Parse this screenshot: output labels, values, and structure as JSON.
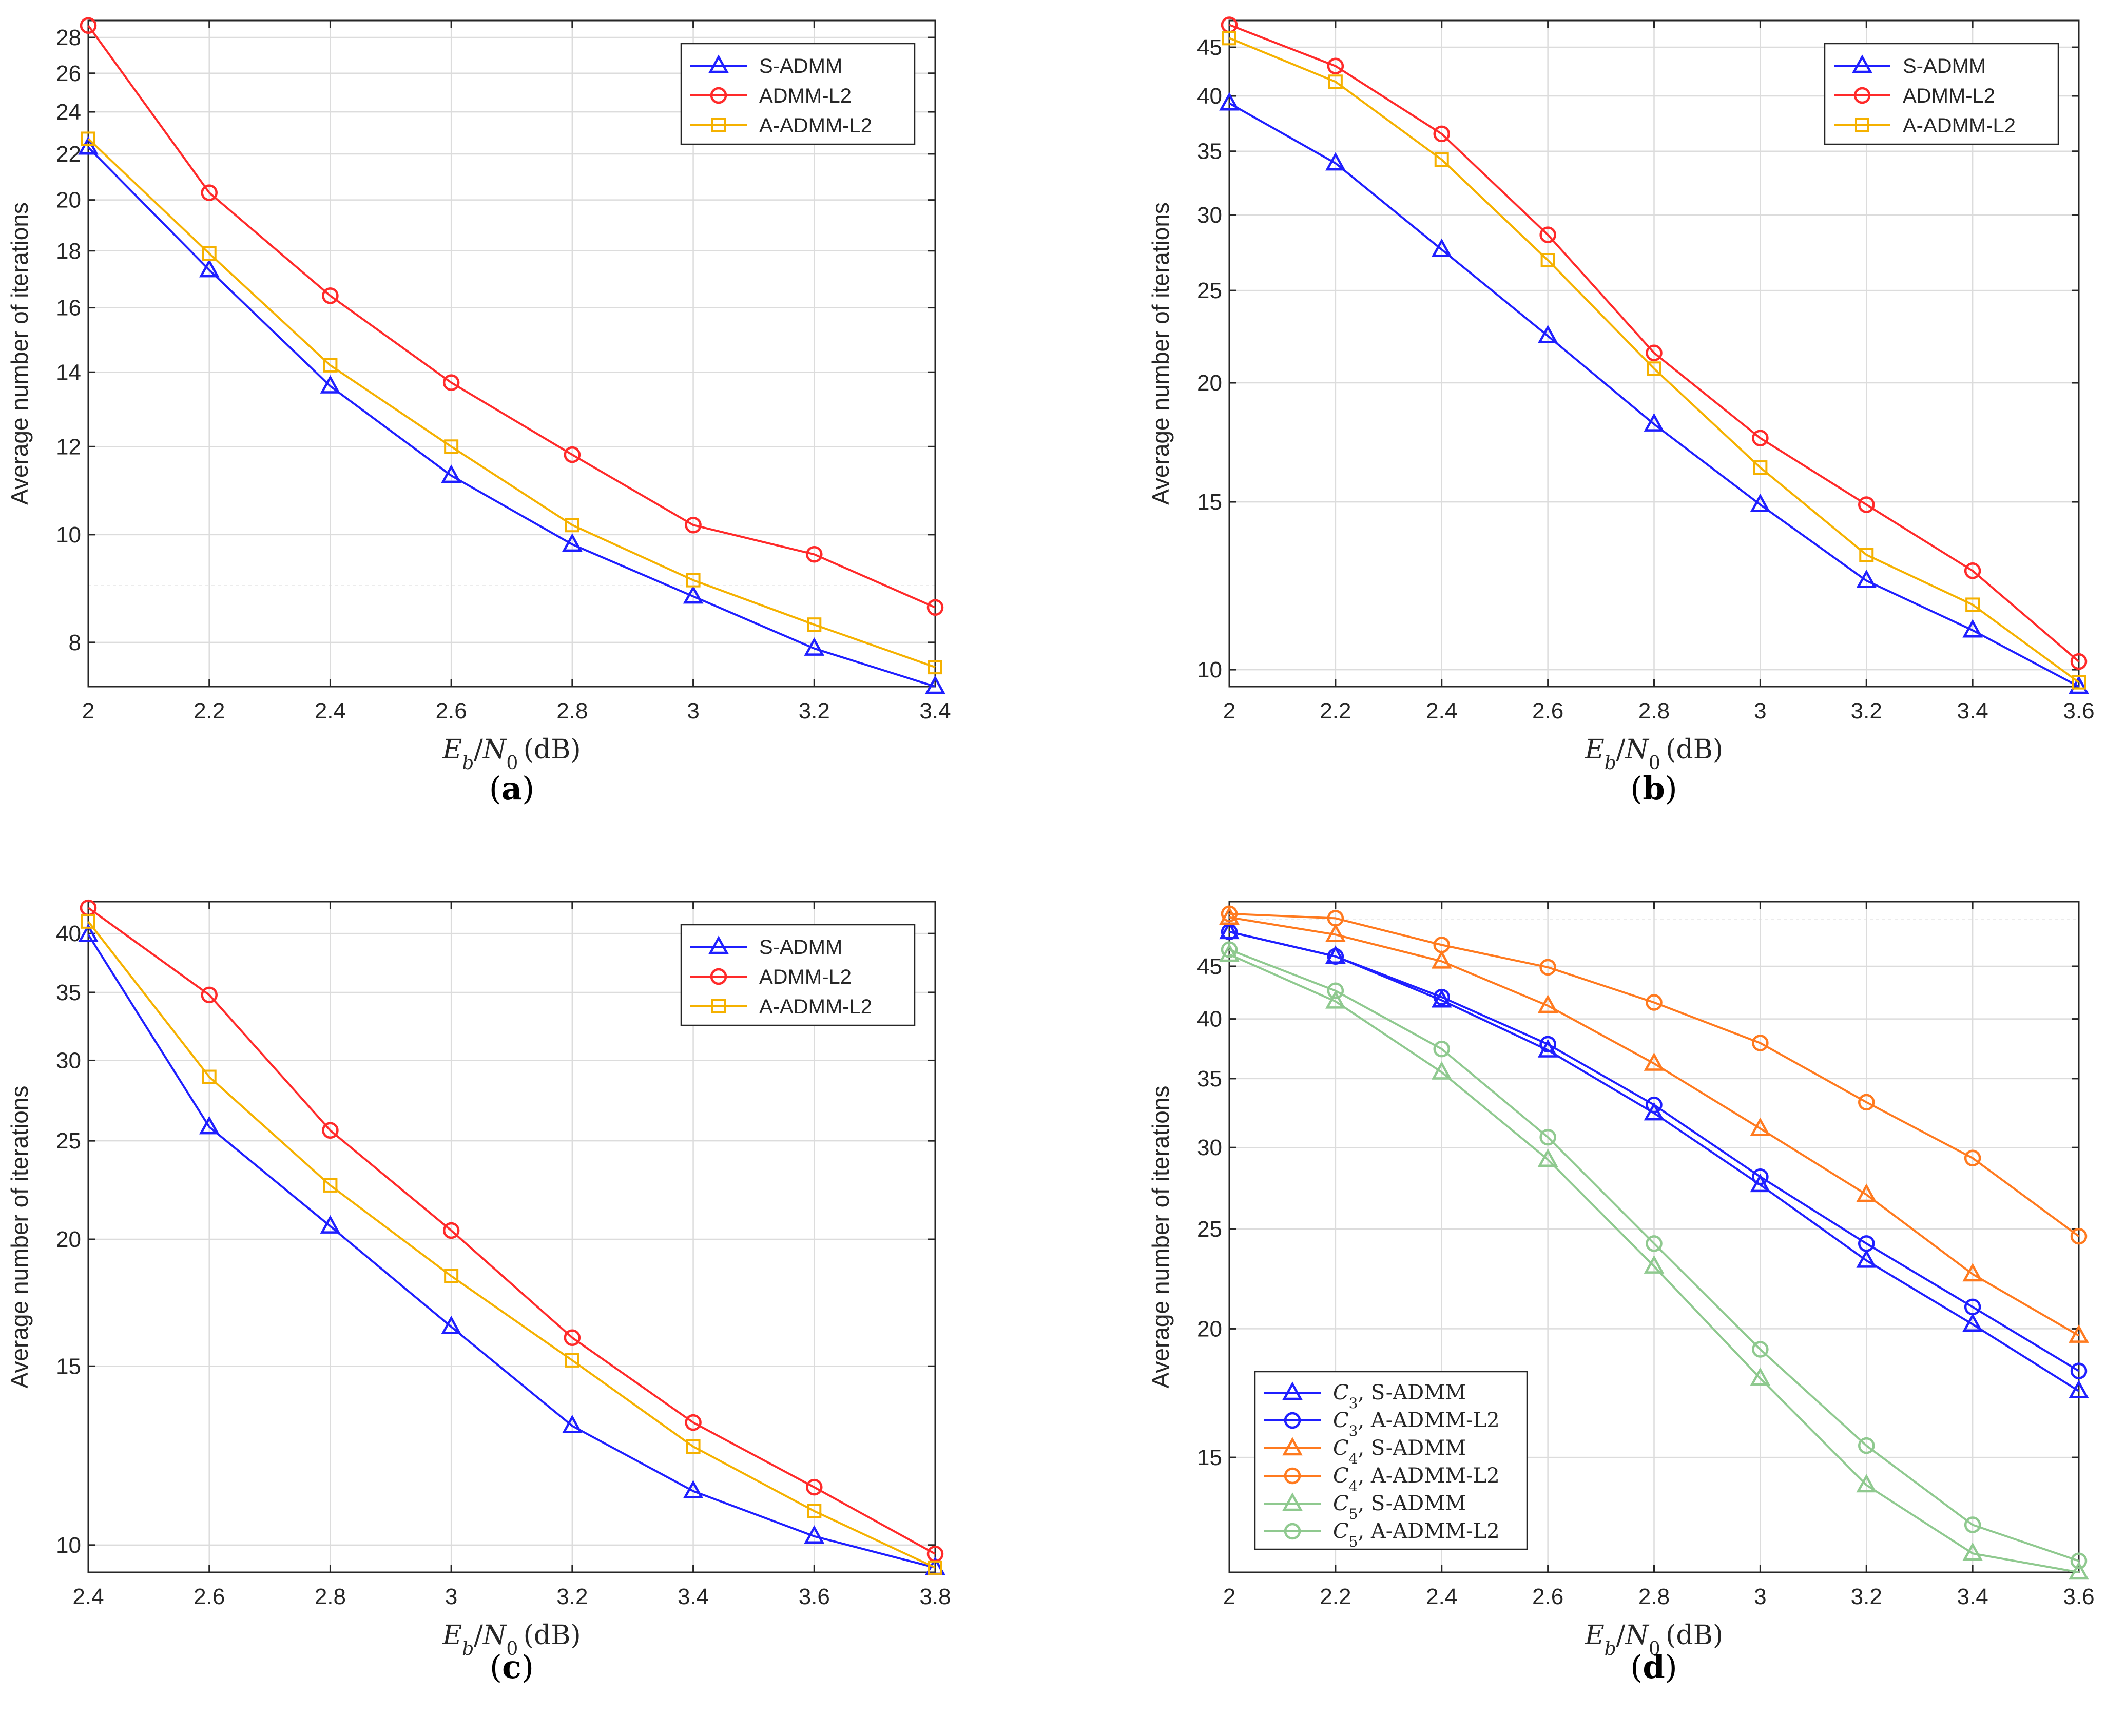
{
  "figure": {
    "captions": [
      "(a)",
      "(b)",
      "(c)",
      "(d)"
    ]
  },
  "colors": {
    "s_admm": "#1f1fff",
    "admm_l2": "#ff2a2a",
    "a_admm_l2": "#f5b100",
    "c3": "#1f1fff",
    "c4": "#ff7a1f",
    "c5": "#8fc98f",
    "grid_major": "#dcdcdc",
    "grid_minor": "#ececec",
    "axis": "#262626"
  },
  "chart_data": [
    {
      "panel": "a",
      "caption_letter": "a",
      "type": "line",
      "yscale": "log",
      "xlabel": "E_b/N_0 (dB)",
      "ylabel": "Average number of iterations",
      "xlim": [
        2,
        3.4
      ],
      "ylim": [
        7.3,
        29
      ],
      "xticks": [
        2,
        2.2,
        2.4,
        2.6,
        2.8,
        3,
        3.2,
        3.4
      ],
      "xtick_labels": [
        "2",
        "2.2",
        "2.4",
        "2.6",
        "2.8",
        "3",
        "3.2",
        "3.4"
      ],
      "yticks": [
        8,
        10,
        12,
        14,
        16,
        18,
        20,
        22,
        24,
        26,
        28
      ],
      "ytick_labels": [
        "8",
        "10",
        "12",
        "14",
        "16",
        "18",
        "20",
        "22",
        "24",
        "26",
        "28"
      ],
      "legend_position": "top-right",
      "x": [
        2,
        2.2,
        2.4,
        2.6,
        2.8,
        3,
        3.2,
        3.4
      ],
      "series": [
        {
          "name": "S-ADMM",
          "legend_label": "S-ADMM",
          "color": "#1f1fff",
          "marker": "triangle",
          "values": [
            22.3,
            17.3,
            13.6,
            11.3,
            9.8,
            8.8,
            7.9,
            7.3
          ]
        },
        {
          "name": "ADMM-L2",
          "legend_label": "ADMM-L2",
          "color": "#ff2a2a",
          "marker": "circle",
          "values": [
            28.7,
            20.3,
            16.4,
            13.7,
            11.8,
            10.2,
            9.6,
            8.6
          ]
        },
        {
          "name": "A-ADMM-L2",
          "legend_label": "A-ADMM-L2",
          "color": "#f5b100",
          "marker": "square",
          "values": [
            22.7,
            17.9,
            14.2,
            12.0,
            10.2,
            9.1,
            8.3,
            7.6
          ]
        }
      ]
    },
    {
      "panel": "b",
      "caption_letter": "b",
      "type": "line",
      "yscale": "log",
      "xlabel": "E_b/N_0 (dB)",
      "ylabel": "Average number of iterations",
      "xlim": [
        2,
        3.6
      ],
      "ylim": [
        9.6,
        48
      ],
      "xticks": [
        2,
        2.2,
        2.4,
        2.6,
        2.8,
        3,
        3.2,
        3.4,
        3.6
      ],
      "xtick_labels": [
        "2",
        "2.2",
        "2.4",
        "2.6",
        "2.8",
        "3",
        "3.2",
        "3.4",
        "3.6"
      ],
      "yticks": [
        10,
        15,
        20,
        25,
        30,
        35,
        40,
        45
      ],
      "ytick_labels": [
        "10",
        "15",
        "20",
        "25",
        "30",
        "35",
        "40",
        "45"
      ],
      "legend_position": "top-right",
      "x": [
        2,
        2.2,
        2.4,
        2.6,
        2.8,
        3,
        3.2,
        3.4,
        3.6
      ],
      "series": [
        {
          "name": "S-ADMM",
          "legend_label": "S-ADMM",
          "color": "#1f1fff",
          "marker": "triangle",
          "values": [
            39.3,
            34.0,
            27.6,
            22.4,
            18.1,
            14.9,
            12.4,
            11.0,
            9.6
          ]
        },
        {
          "name": "ADMM-L2",
          "legend_label": "ADMM-L2",
          "color": "#ff2a2a",
          "marker": "circle",
          "values": [
            47.5,
            43.0,
            36.5,
            28.6,
            21.5,
            17.5,
            14.9,
            12.7,
            10.2
          ]
        },
        {
          "name": "A-ADMM-L2",
          "legend_label": "A-ADMM-L2",
          "color": "#f5b100",
          "marker": "square",
          "values": [
            46.0,
            41.4,
            34.3,
            26.9,
            20.7,
            16.3,
            13.2,
            11.7,
            9.7
          ]
        }
      ]
    },
    {
      "panel": "c",
      "caption_letter": "c",
      "type": "line",
      "yscale": "log",
      "xlabel": "E_b/N_0 (dB)",
      "ylabel": "Average number of iterations",
      "xlim": [
        2.4,
        3.8
      ],
      "ylim": [
        9.4,
        43
      ],
      "xticks": [
        2.4,
        2.6,
        2.8,
        3,
        3.2,
        3.4,
        3.6,
        3.8
      ],
      "xtick_labels": [
        "2.4",
        "2.6",
        "2.8",
        "3",
        "3.2",
        "3.4",
        "3.6",
        "3.8"
      ],
      "yticks": [
        10,
        15,
        20,
        25,
        30,
        35,
        40
      ],
      "ytick_labels": [
        "10",
        "15",
        "20",
        "25",
        "30",
        "35",
        "40"
      ],
      "legend_position": "top-right",
      "x": [
        2.4,
        2.6,
        2.8,
        3,
        3.2,
        3.4,
        3.6,
        3.8
      ],
      "series": [
        {
          "name": "S-ADMM",
          "legend_label": "S-ADMM",
          "color": "#1f1fff",
          "marker": "triangle",
          "values": [
            39.9,
            25.8,
            20.6,
            16.4,
            13.1,
            11.3,
            10.2,
            9.5
          ]
        },
        {
          "name": "ADMM-L2",
          "legend_label": "ADMM-L2",
          "color": "#ff2a2a",
          "marker": "circle",
          "values": [
            42.4,
            34.8,
            25.6,
            20.4,
            16.0,
            13.2,
            11.4,
            9.8
          ]
        },
        {
          "name": "A-ADMM-L2",
          "legend_label": "A-ADMM-L2",
          "color": "#f5b100",
          "marker": "square",
          "values": [
            41.1,
            28.9,
            22.6,
            18.4,
            15.2,
            12.5,
            10.8,
            9.5
          ]
        }
      ]
    },
    {
      "panel": "d",
      "caption_letter": "d",
      "type": "line",
      "yscale": "log",
      "xlabel": "E_b/N_0 (dB)",
      "ylabel": "Average number of iterations",
      "xlim": [
        2,
        3.6
      ],
      "ylim": [
        11.6,
        52
      ],
      "xticks": [
        2,
        2.2,
        2.4,
        2.6,
        2.8,
        3,
        3.2,
        3.4,
        3.6
      ],
      "xtick_labels": [
        "2",
        "2.2",
        "2.4",
        "2.6",
        "2.8",
        "3",
        "3.2",
        "3.4",
        "3.6"
      ],
      "yticks": [
        15,
        20,
        25,
        30,
        35,
        40,
        45
      ],
      "ytick_labels": [
        "15",
        "20",
        "25",
        "30",
        "35",
        "40",
        "45"
      ],
      "legend_position": "bottom-left",
      "x": [
        2,
        2.2,
        2.4,
        2.6,
        2.8,
        3,
        3.2,
        3.4,
        3.6
      ],
      "series": [
        {
          "name": "C3, S-ADMM",
          "legend_code": "C",
          "legend_sub": "3",
          "legend_label": ", S-ADMM",
          "color": "#1f1fff",
          "marker": "triangle",
          "values": [
            48.6,
            46.0,
            41.7,
            37.3,
            32.4,
            27.6,
            23.3,
            20.2,
            17.4
          ]
        },
        {
          "name": "C3, A-ADMM-L2",
          "legend_code": "C",
          "legend_sub": "3",
          "legend_label": ", A-ADMM-L2",
          "color": "#1f1fff",
          "marker": "circle",
          "values": [
            48.6,
            46.0,
            42.0,
            37.8,
            33.0,
            28.1,
            24.2,
            21.0,
            18.2
          ]
        },
        {
          "name": "C4, S-ADMM",
          "legend_code": "C",
          "legend_sub": "4",
          "legend_label": ", S-ADMM",
          "color": "#ff7a1f",
          "marker": "triangle",
          "values": [
            50.2,
            48.3,
            45.5,
            41.2,
            36.2,
            31.3,
            27.0,
            22.6,
            19.7
          ]
        },
        {
          "name": "C4, A-ADMM-L2",
          "legend_code": "C",
          "legend_sub": "4",
          "legend_label": ", A-ADMM-L2",
          "color": "#ff7a1f",
          "marker": "circle",
          "values": [
            50.6,
            50.1,
            47.2,
            44.9,
            41.5,
            37.9,
            33.2,
            29.3,
            24.6
          ]
        },
        {
          "name": "C5, S-ADMM",
          "legend_code": "C",
          "legend_sub": "5",
          "legend_label": ", S-ADMM",
          "color": "#8fc98f",
          "marker": "triangle",
          "values": [
            46.2,
            41.6,
            35.5,
            29.2,
            23.0,
            17.9,
            14.1,
            12.1,
            11.6
          ]
        },
        {
          "name": "C5, A-ADMM-L2",
          "legend_code": "C",
          "legend_sub": "5",
          "legend_label": ", A-ADMM-L2",
          "color": "#8fc98f",
          "marker": "circle",
          "values": [
            46.7,
            42.6,
            37.4,
            30.7,
            24.2,
            19.1,
            15.4,
            12.9,
            11.9
          ]
        }
      ]
    }
  ]
}
